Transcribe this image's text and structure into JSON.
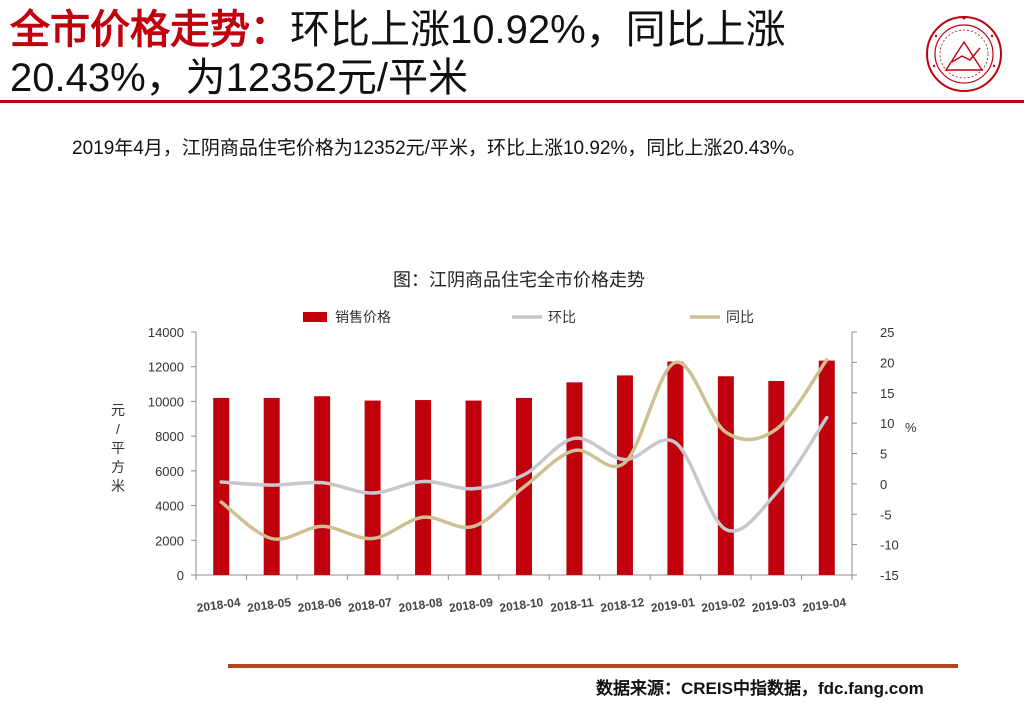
{
  "header": {
    "title_highlight": "全市价格走势：",
    "title_rest": "环比上涨10.92%，同比上涨20.43%，为12352元/平米"
  },
  "summary": "2019年4月，江阴商品住宅价格为12352元/平米，环比上涨10.92%，同比上涨20.43%。",
  "source": "数据来源：CREIS中指数据，fdc.fang.com",
  "colors": {
    "accent": "#c0000c",
    "bar": "#c0000c",
    "mom_line": "#c8c8cc",
    "yoy_line": "#cfc093",
    "bottom_rule": "#b5471e"
  },
  "icons": {
    "logo": "china-index-academy-seal"
  },
  "chart_data": {
    "type": "bar",
    "title": "图：江阴商品住宅全市价格走势",
    "categories": [
      "2018-04",
      "2018-05",
      "2018-06",
      "2018-07",
      "2018-08",
      "2018-09",
      "2018-10",
      "2018-11",
      "2018-12",
      "2019-01",
      "2019-02",
      "2019-03",
      "2019-04"
    ],
    "ylabel_left": "元/平方米",
    "ylabel_right": "%",
    "ylim_left": [
      0,
      14000
    ],
    "yticks_left": [
      "0",
      "2000",
      "4000",
      "6000",
      "8000",
      "10000",
      "12000",
      "14000"
    ],
    "ylim_right": [
      -15,
      25
    ],
    "yticks_right": [
      "-15",
      "-10",
      "-5",
      "0",
      "5",
      "10",
      "15",
      "20",
      "25"
    ],
    "legend_position": "top",
    "grid": false,
    "series": [
      {
        "name": "销售价格",
        "kind": "bar",
        "axis": "left",
        "values": [
          10200,
          10200,
          10300,
          10050,
          10080,
          10050,
          10200,
          11100,
          11500,
          12300,
          11450,
          11180,
          12352
        ]
      },
      {
        "name": "环比",
        "kind": "line",
        "axis": "right",
        "values": [
          0.3,
          -0.2,
          0.2,
          -1.5,
          0.4,
          -0.8,
          1.5,
          7.5,
          4.0,
          6.8,
          -7.5,
          -1.5,
          10.92
        ]
      },
      {
        "name": "同比",
        "kind": "line",
        "axis": "right",
        "values": [
          -3.0,
          -9.0,
          -7.0,
          -9.0,
          -5.5,
          -7.0,
          -0.5,
          5.5,
          3.5,
          20.0,
          8.5,
          9.0,
          20.43
        ]
      }
    ]
  }
}
